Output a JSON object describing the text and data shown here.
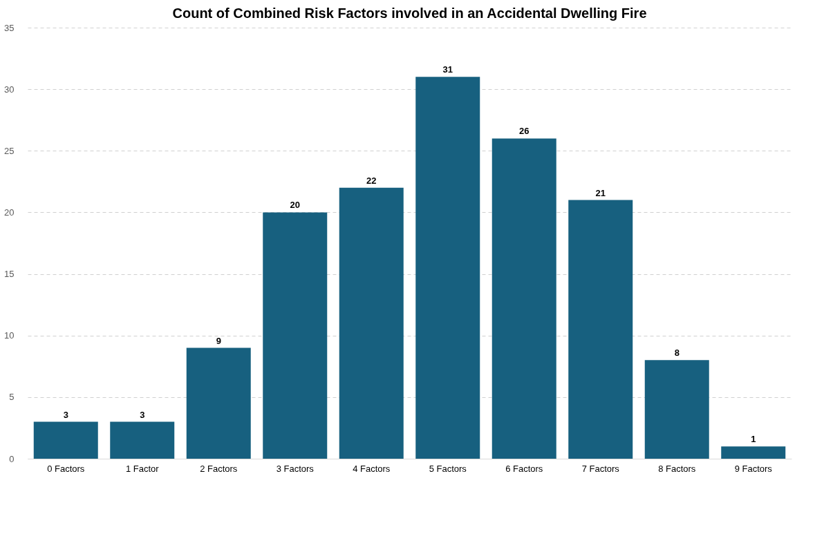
{
  "chart_data": {
    "type": "bar",
    "title": "Count of Combined Risk Factors involved in an Accidental Dwelling Fire",
    "categories": [
      "0 Factors",
      "1 Factor",
      "2 Factors",
      "3 Factors",
      "4 Factors",
      "5 Factors",
      "6 Factors",
      "7 Factors",
      "8 Factors",
      "9 Factors"
    ],
    "values": [
      3,
      3,
      9,
      20,
      22,
      31,
      26,
      21,
      8,
      1
    ],
    "color": "#17607f",
    "ylim": [
      0,
      35
    ],
    "yticks": [
      0,
      5,
      10,
      15,
      20,
      25,
      30,
      35
    ],
    "grid": "y",
    "data_labels": true
  }
}
